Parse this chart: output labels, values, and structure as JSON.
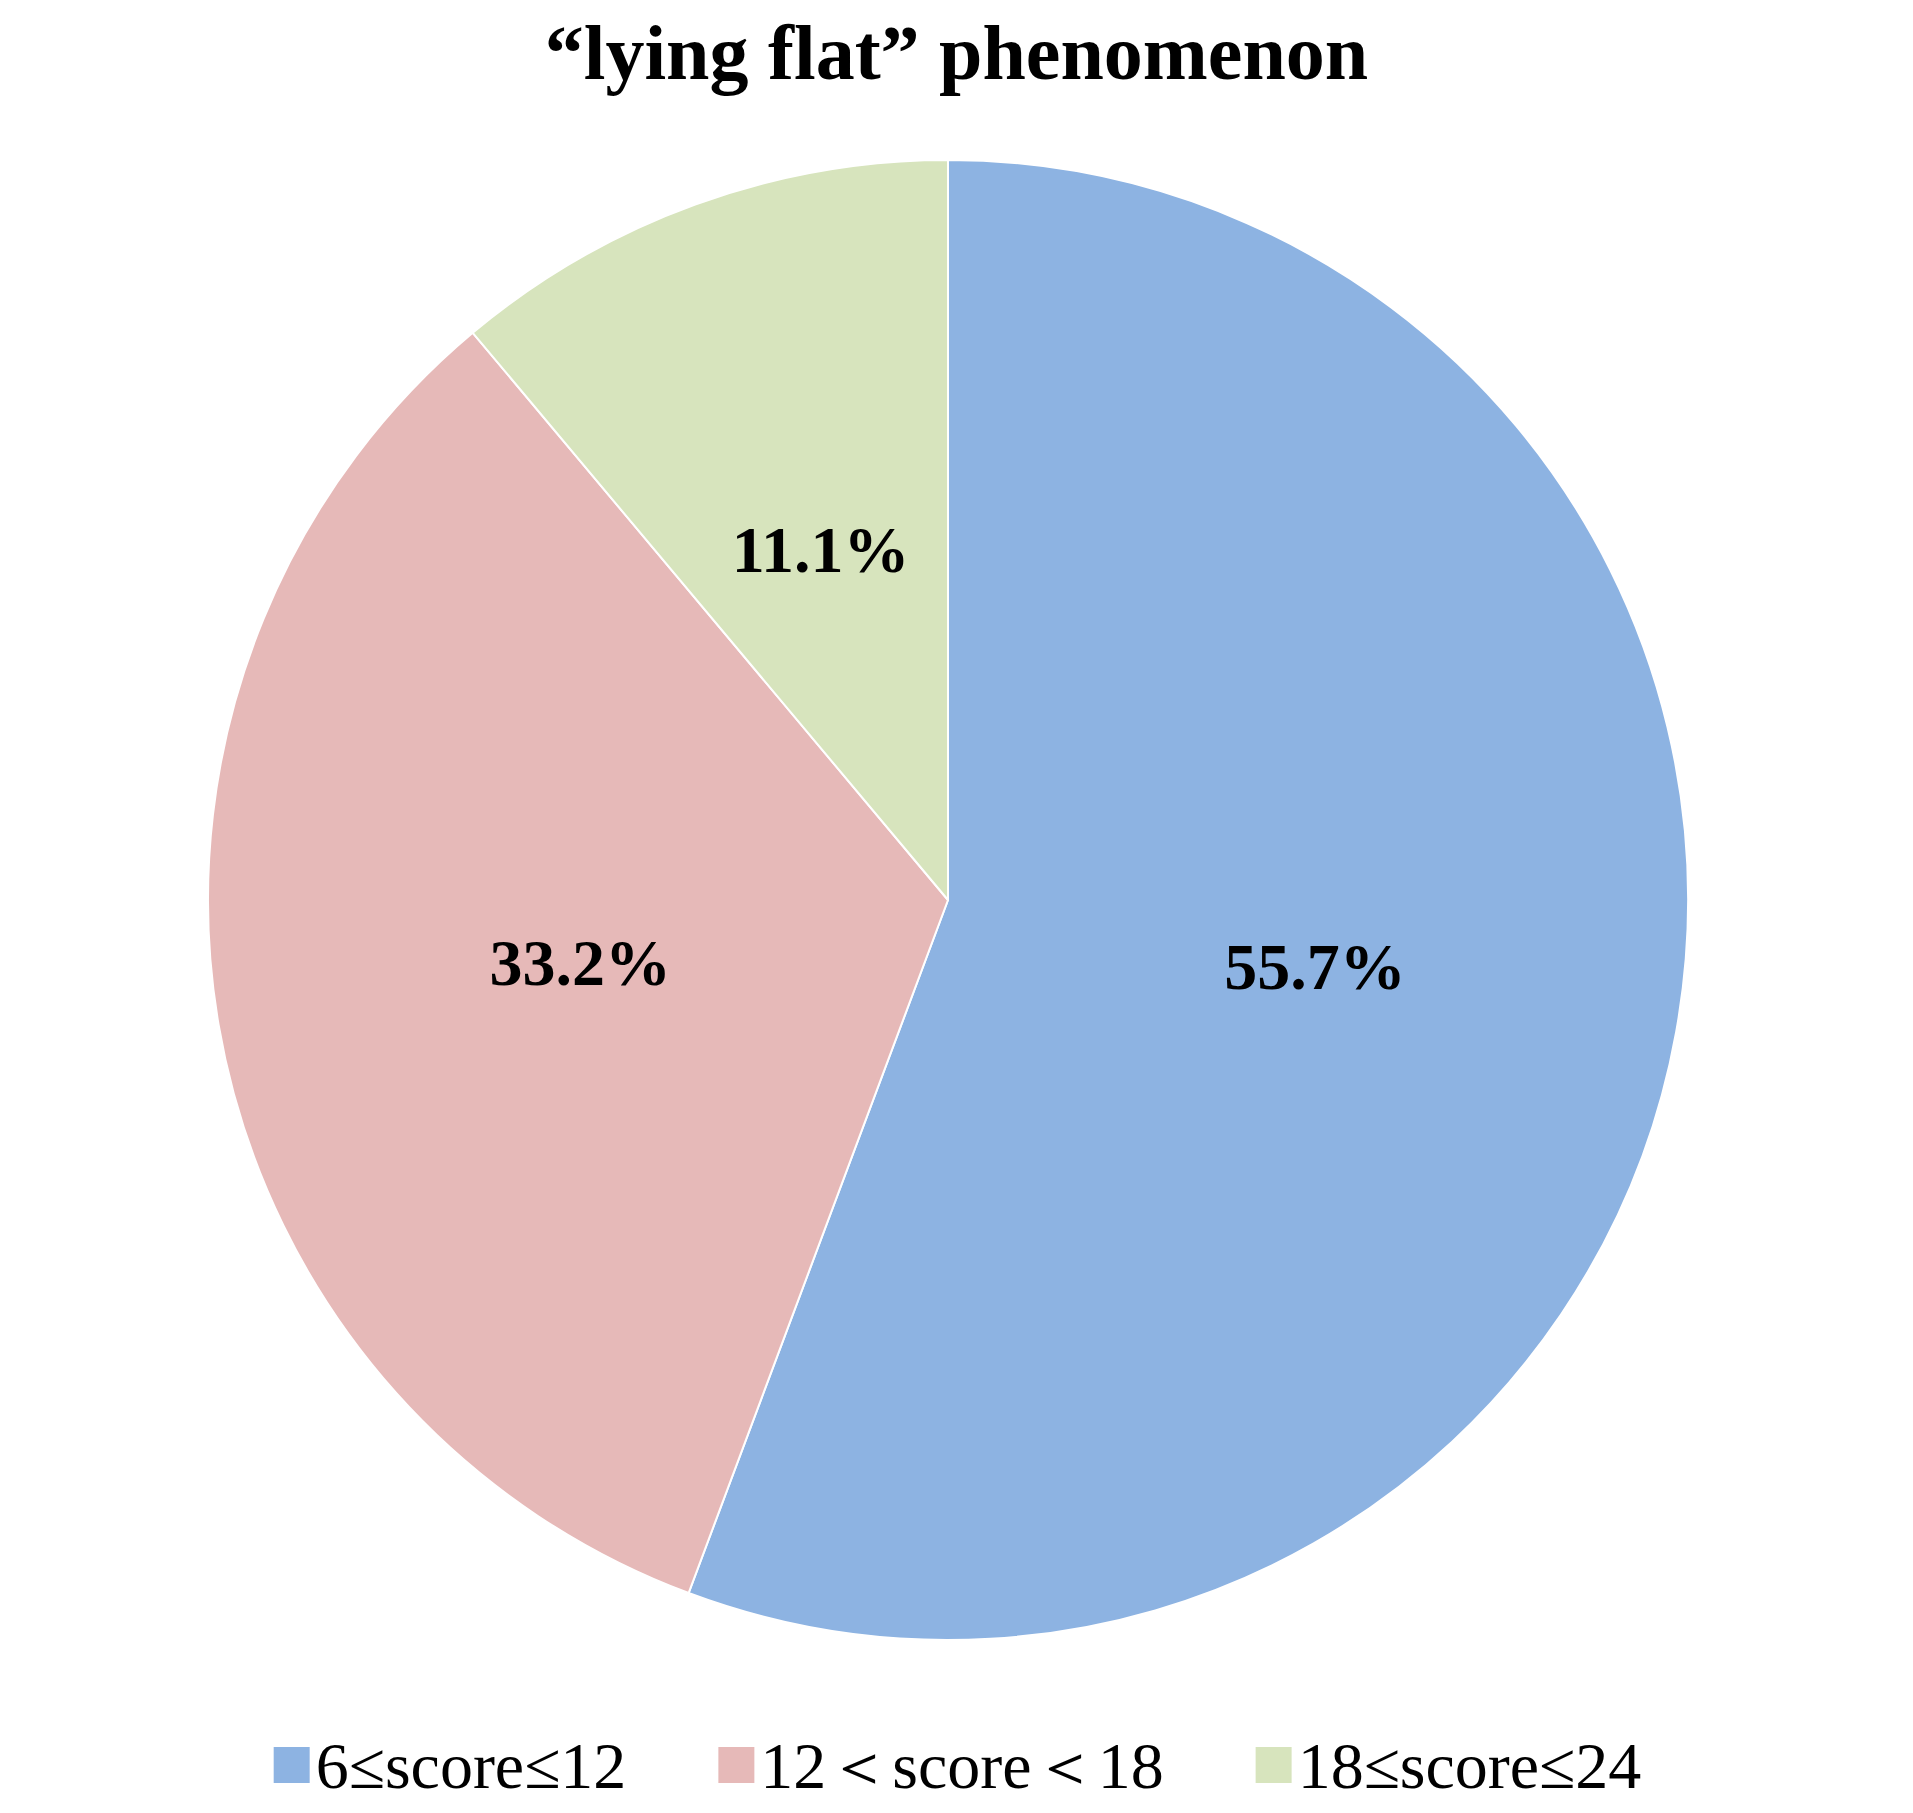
{
  "chart_data": {
    "type": "pie",
    "title": "“lying flat” phenomenon",
    "categories": [
      "6≤score≤12",
      "12＜score＜18",
      "18≤score≤24"
    ],
    "values": [
      55.7,
      33.2,
      11.1
    ],
    "colors": [
      "#8db3e2",
      "#e6b9b8",
      "#d7e4bd"
    ],
    "value_labels": [
      "55.7%",
      "33.2%",
      "11.1%"
    ],
    "legend": "bottom"
  }
}
